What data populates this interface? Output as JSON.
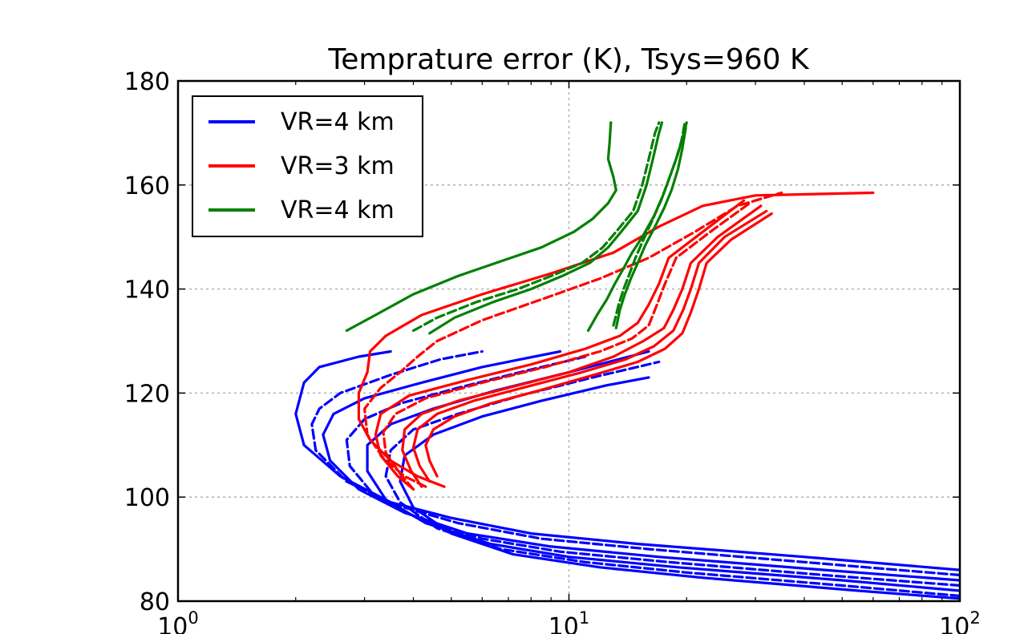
{
  "chart_data": {
    "type": "line",
    "title": "Temprature error (K), Tsys=960 K",
    "xscale": "log",
    "xlim": [
      1,
      100
    ],
    "ylim": [
      80,
      180
    ],
    "grid": true,
    "legend_position": "top-left",
    "x_ticks": [
      {
        "base": "10",
        "exp": "0",
        "value": 1
      },
      {
        "base": "10",
        "exp": "1",
        "value": 10
      },
      {
        "base": "10",
        "exp": "2",
        "value": 100
      }
    ],
    "y_ticks": [
      "80",
      "100",
      "120",
      "140",
      "160",
      "180"
    ],
    "legend": [
      {
        "label": "VR=4 km",
        "color": "#0000ff"
      },
      {
        "label": "VR=3 km",
        "color": "#ff0000"
      },
      {
        "label": "VR=4 km",
        "color": "#008000"
      }
    ],
    "series": [
      {
        "color": "#0000ff",
        "style": "solid",
        "points": [
          [
            100,
            86
          ],
          [
            40,
            88.5
          ],
          [
            15,
            91
          ],
          [
            8,
            93
          ],
          [
            5,
            96
          ],
          [
            3.5,
            99
          ],
          [
            2.6,
            104
          ],
          [
            2.1,
            110
          ],
          [
            2.0,
            116
          ],
          [
            2.1,
            122
          ],
          [
            2.3,
            125
          ],
          [
            2.9,
            127
          ],
          [
            3.5,
            128
          ]
        ]
      },
      {
        "color": "#0000ff",
        "style": "dashed",
        "points": [
          [
            100,
            85
          ],
          [
            40,
            87.5
          ],
          [
            16,
            90
          ],
          [
            8.5,
            92
          ],
          [
            5.2,
            95
          ],
          [
            3.6,
            98.5
          ],
          [
            2.7,
            103
          ],
          [
            2.25,
            109
          ],
          [
            2.2,
            114
          ],
          [
            2.3,
            117
          ],
          [
            2.6,
            120
          ],
          [
            3.5,
            123.5
          ],
          [
            4.7,
            126.5
          ],
          [
            6,
            128
          ]
        ]
      },
      {
        "color": "#0000ff",
        "style": "solid",
        "points": [
          [
            100,
            84
          ],
          [
            45,
            86
          ],
          [
            17,
            88.5
          ],
          [
            9,
            90.5
          ],
          [
            5.5,
            93
          ],
          [
            3.8,
            97
          ],
          [
            2.9,
            101.5
          ],
          [
            2.45,
            107
          ],
          [
            2.35,
            112
          ],
          [
            2.5,
            116
          ],
          [
            3,
            119
          ],
          [
            4.2,
            122
          ],
          [
            6,
            125
          ],
          [
            9.5,
            128
          ]
        ]
      },
      {
        "color": "#0000ff",
        "style": "dashed",
        "points": [
          [
            100,
            83
          ],
          [
            45,
            85
          ],
          [
            18,
            87.5
          ],
          [
            9.5,
            89.5
          ],
          [
            6,
            92
          ],
          [
            4.1,
            96
          ],
          [
            3.2,
            100
          ],
          [
            2.75,
            106
          ],
          [
            2.7,
            111
          ],
          [
            3.0,
            115
          ],
          [
            3.7,
            118
          ],
          [
            5.2,
            121
          ],
          [
            7.5,
            124
          ],
          [
            11,
            127
          ]
        ]
      },
      {
        "color": "#0000ff",
        "style": "solid",
        "points": [
          [
            100,
            82
          ],
          [
            50,
            84
          ],
          [
            19,
            86.5
          ],
          [
            10,
            88.5
          ],
          [
            6.3,
            91
          ],
          [
            4.3,
            95
          ],
          [
            3.4,
            99.5
          ],
          [
            3.05,
            105
          ],
          [
            3.05,
            110
          ],
          [
            3.5,
            114
          ],
          [
            4.5,
            117
          ],
          [
            6.5,
            120.5
          ],
          [
            10,
            124
          ],
          [
            16,
            128
          ]
        ]
      },
      {
        "color": "#0000ff",
        "style": "dashed",
        "points": [
          [
            100,
            81
          ],
          [
            50,
            83
          ],
          [
            20,
            85.5
          ],
          [
            11,
            87.5
          ],
          [
            6.7,
            90
          ],
          [
            4.6,
            94
          ],
          [
            3.7,
            99
          ],
          [
            3.4,
            104
          ],
          [
            3.5,
            109
          ],
          [
            4.0,
            113
          ],
          [
            5.2,
            116
          ],
          [
            7.5,
            119.5
          ],
          [
            11.5,
            123
          ],
          [
            17,
            126
          ]
        ]
      },
      {
        "color": "#0000ff",
        "style": "solid",
        "points": [
          [
            100,
            80.5
          ],
          [
            55,
            82
          ],
          [
            22,
            84.5
          ],
          [
            12,
            86.5
          ],
          [
            7.2,
            89
          ],
          [
            5,
            93
          ],
          [
            4,
            98
          ],
          [
            3.7,
            103
          ],
          [
            3.8,
            108
          ],
          [
            4.5,
            112
          ],
          [
            6,
            115.5
          ],
          [
            8.5,
            118.5
          ],
          [
            12.5,
            121.5
          ],
          [
            16,
            123
          ]
        ]
      },
      {
        "color": "#ff0000",
        "style": "solid",
        "points": [
          [
            4.8,
            102
          ],
          [
            4.1,
            104
          ],
          [
            3.5,
            107
          ],
          [
            3.1,
            111
          ],
          [
            2.9,
            115
          ],
          [
            2.9,
            120
          ],
          [
            3.05,
            124
          ],
          [
            3.1,
            128
          ],
          [
            3.4,
            131
          ],
          [
            4.2,
            135
          ],
          [
            6,
            139
          ],
          [
            9,
            143
          ],
          [
            13,
            147
          ],
          [
            17,
            152
          ],
          [
            22,
            156
          ],
          [
            30,
            158
          ],
          [
            60,
            158.5
          ]
        ]
      },
      {
        "color": "#ff0000",
        "style": "dashed",
        "points": [
          [
            4.3,
            102
          ],
          [
            3.8,
            104
          ],
          [
            3.35,
            107.5
          ],
          [
            3.05,
            112
          ],
          [
            3.0,
            117
          ],
          [
            3.3,
            121
          ],
          [
            3.7,
            124
          ],
          [
            4.1,
            127
          ],
          [
            4.6,
            130
          ],
          [
            6,
            134
          ],
          [
            8.5,
            138
          ],
          [
            12,
            142
          ],
          [
            16,
            146
          ],
          [
            21,
            151
          ],
          [
            27,
            156
          ],
          [
            35,
            158.5
          ]
        ]
      },
      {
        "color": "#ff0000",
        "style": "solid",
        "points": [
          [
            4.0,
            101.5
          ],
          [
            3.65,
            104
          ],
          [
            3.3,
            108
          ],
          [
            3.2,
            112
          ],
          [
            3.3,
            116
          ],
          [
            3.9,
            119.5
          ],
          [
            5.5,
            122.5
          ],
          [
            8,
            125.5
          ],
          [
            11,
            128.5
          ],
          [
            13.5,
            131
          ],
          [
            15,
            133.5
          ],
          [
            16,
            137
          ],
          [
            17,
            141
          ],
          [
            18,
            146
          ],
          [
            22,
            151
          ],
          [
            28,
            157
          ]
        ]
      },
      {
        "color": "#ff0000",
        "style": "dashed",
        "points": [
          [
            4.0,
            101.5
          ],
          [
            3.7,
            104.5
          ],
          [
            3.4,
            108.5
          ],
          [
            3.35,
            112.5
          ],
          [
            3.6,
            116
          ],
          [
            4.3,
            119
          ],
          [
            6,
            122
          ],
          [
            8.7,
            125
          ],
          [
            12,
            128
          ],
          [
            14.5,
            130.5
          ],
          [
            16,
            133
          ],
          [
            16.8,
            137
          ],
          [
            17.6,
            141
          ],
          [
            18.8,
            146
          ],
          [
            23,
            151
          ],
          [
            29,
            156.5
          ]
        ]
      },
      {
        "color": "#ff0000",
        "style": "solid",
        "points": [
          [
            4.2,
            102
          ],
          [
            3.95,
            105
          ],
          [
            3.75,
            109
          ],
          [
            3.8,
            113
          ],
          [
            4.2,
            116
          ],
          [
            5.2,
            118.5
          ],
          [
            7,
            121
          ],
          [
            10,
            124
          ],
          [
            13,
            127
          ],
          [
            15.5,
            130
          ],
          [
            17.5,
            132.5
          ],
          [
            18.5,
            136
          ],
          [
            19.5,
            140
          ],
          [
            20.5,
            145
          ],
          [
            24,
            150
          ],
          [
            31,
            156
          ]
        ]
      },
      {
        "color": "#ff0000",
        "style": "solid",
        "points": [
          [
            4.4,
            103
          ],
          [
            4.15,
            106
          ],
          [
            4.0,
            109.5
          ],
          [
            4.1,
            113
          ],
          [
            4.6,
            116
          ],
          [
            5.7,
            118.5
          ],
          [
            7.6,
            121
          ],
          [
            10.8,
            124
          ],
          [
            14,
            126.5
          ],
          [
            16.5,
            129
          ],
          [
            18.5,
            132
          ],
          [
            19.6,
            136
          ],
          [
            20.5,
            140
          ],
          [
            21.5,
            145
          ],
          [
            25,
            150
          ],
          [
            32,
            155
          ]
        ]
      },
      {
        "color": "#ff0000",
        "style": "solid",
        "points": [
          [
            4.6,
            104
          ],
          [
            4.4,
            107
          ],
          [
            4.3,
            110
          ],
          [
            4.5,
            113
          ],
          [
            5.1,
            115.5
          ],
          [
            6.3,
            118
          ],
          [
            8.4,
            120.5
          ],
          [
            11.6,
            123.5
          ],
          [
            15,
            126
          ],
          [
            17.6,
            128.5
          ],
          [
            19.5,
            131.5
          ],
          [
            20.5,
            135.5
          ],
          [
            21.5,
            140
          ],
          [
            22.5,
            145
          ],
          [
            26,
            149.5
          ],
          [
            33,
            154.5
          ]
        ]
      },
      {
        "color": "#008000",
        "style": "solid",
        "points": [
          [
            2.7,
            132
          ],
          [
            3.2,
            135
          ],
          [
            4.0,
            139
          ],
          [
            5.2,
            142.5
          ],
          [
            6.8,
            145.5
          ],
          [
            8.5,
            148
          ],
          [
            10.3,
            151
          ],
          [
            11.5,
            153.5
          ],
          [
            12.6,
            156.5
          ],
          [
            13.2,
            159
          ],
          [
            13.0,
            161.5
          ],
          [
            12.6,
            165
          ],
          [
            12.7,
            168
          ],
          [
            12.8,
            172
          ]
        ]
      },
      {
        "color": "#008000",
        "style": "dashed",
        "points": [
          [
            4.0,
            132
          ],
          [
            4.6,
            134.5
          ],
          [
            5.8,
            137.5
          ],
          [
            7.4,
            140
          ],
          [
            9.0,
            142.5
          ],
          [
            10.8,
            145
          ],
          [
            12.2,
            148
          ],
          [
            13.2,
            151
          ],
          [
            14.6,
            155
          ],
          [
            15.4,
            160
          ],
          [
            16.0,
            165
          ],
          [
            16.6,
            170
          ],
          [
            17.0,
            172
          ]
        ]
      },
      {
        "color": "#008000",
        "style": "solid",
        "points": [
          [
            4.4,
            131.5
          ],
          [
            5.1,
            134.5
          ],
          [
            6.4,
            137.5
          ],
          [
            8.0,
            140
          ],
          [
            9.6,
            142.5
          ],
          [
            11.3,
            145
          ],
          [
            12.6,
            148
          ],
          [
            13.6,
            151
          ],
          [
            15.0,
            155
          ],
          [
            15.8,
            160
          ],
          [
            16.4,
            165
          ],
          [
            17.0,
            170
          ],
          [
            17.3,
            172
          ]
        ]
      },
      {
        "color": "#008000",
        "style": "dashed",
        "points": [
          [
            13.0,
            133
          ],
          [
            13.4,
            137
          ],
          [
            13.8,
            140
          ],
          [
            14.3,
            143
          ],
          [
            14.8,
            146
          ],
          [
            15.4,
            149
          ],
          [
            16.3,
            153
          ],
          [
            17.2,
            157
          ],
          [
            18.0,
            161
          ],
          [
            18.8,
            165
          ],
          [
            19.4,
            168.5
          ],
          [
            19.8,
            172
          ]
        ]
      },
      {
        "color": "#008000",
        "style": "solid",
        "points": [
          [
            11.2,
            132
          ],
          [
            11.8,
            135
          ],
          [
            12.5,
            138
          ],
          [
            13.1,
            141
          ],
          [
            13.8,
            144
          ],
          [
            14.5,
            147
          ],
          [
            15.4,
            150
          ],
          [
            16.5,
            154
          ],
          [
            17.4,
            158
          ],
          [
            18.2,
            162
          ],
          [
            19.0,
            166
          ],
          [
            19.6,
            169.5
          ],
          [
            20.0,
            172
          ]
        ]
      },
      {
        "color": "#008000",
        "style": "solid",
        "points": [
          [
            13.2,
            132.5
          ],
          [
            13.5,
            136
          ],
          [
            13.9,
            139
          ],
          [
            14.4,
            142
          ],
          [
            15.0,
            145
          ],
          [
            15.7,
            148.5
          ],
          [
            16.6,
            152
          ],
          [
            17.5,
            155.5
          ],
          [
            18.3,
            159
          ],
          [
            19.0,
            163
          ],
          [
            19.5,
            167
          ],
          [
            19.9,
            171
          ]
        ]
      }
    ]
  }
}
